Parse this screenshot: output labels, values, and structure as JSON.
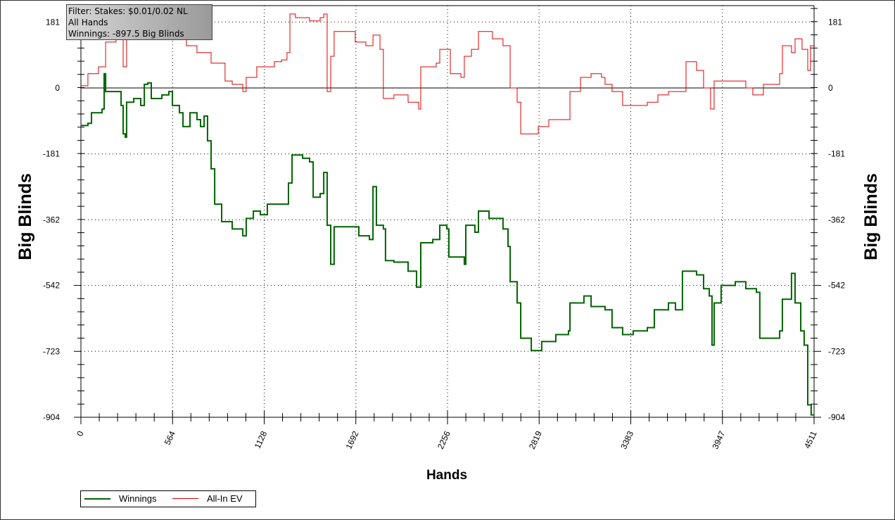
{
  "filter_box": {
    "line1": "Filter: Stakes: $0.01/0.02 NL",
    "line2": "All Hands",
    "line3": "Winnings: -897.5 Big Blinds"
  },
  "chart_data": {
    "type": "line",
    "xlabel": "Hands",
    "ylabel": "Big Blinds",
    "ylabel_right": "Big Blinds",
    "xlim": [
      0,
      4511
    ],
    "ylim": [
      -904,
      226
    ],
    "x_ticks": [
      0,
      564,
      1128,
      1692,
      2256,
      2819,
      3383,
      3947,
      4511
    ],
    "x_tick_labels": [
      "0",
      "564",
      "1128",
      "1692",
      "2256",
      "2819",
      "3383",
      "3947",
      "4511"
    ],
    "y_ticks": [
      181,
      0,
      -181,
      -362,
      -542,
      -723,
      -904
    ],
    "y_tick_labels": [
      "181",
      "0",
      "-181",
      "-362",
      "-542",
      "-723",
      "-904"
    ],
    "grid": true,
    "legend_placement": "bottom-left",
    "series": [
      {
        "name": "Winnings",
        "color": "#006400",
        "points": [
          [
            0,
            -103
          ],
          [
            43,
            -97
          ],
          [
            65,
            -68
          ],
          [
            130,
            -58
          ],
          [
            143,
            39
          ],
          [
            152,
            -10
          ],
          [
            216,
            -10
          ],
          [
            247,
            -48
          ],
          [
            260,
            -126
          ],
          [
            273,
            -135
          ],
          [
            281,
            -39
          ],
          [
            325,
            -29
          ],
          [
            368,
            -48
          ],
          [
            390,
            10
          ],
          [
            411,
            14
          ],
          [
            433,
            -29
          ],
          [
            498,
            -19
          ],
          [
            541,
            -10
          ],
          [
            563,
            -48
          ],
          [
            606,
            -68
          ],
          [
            628,
            -106
          ],
          [
            671,
            -68
          ],
          [
            714,
            -87
          ],
          [
            736,
            -106
          ],
          [
            758,
            -77
          ],
          [
            779,
            -145
          ],
          [
            801,
            -222
          ],
          [
            823,
            -319
          ],
          [
            866,
            -367
          ],
          [
            931,
            -387
          ],
          [
            996,
            -406
          ],
          [
            1017,
            -358
          ],
          [
            1061,
            -338
          ],
          [
            1104,
            -348
          ],
          [
            1147,
            -319
          ],
          [
            1234,
            -319
          ],
          [
            1277,
            -261
          ],
          [
            1299,
            -184
          ],
          [
            1364,
            -193
          ],
          [
            1407,
            -203
          ],
          [
            1429,
            -300
          ],
          [
            1472,
            -290
          ],
          [
            1494,
            -232
          ],
          [
            1515,
            -377
          ],
          [
            1537,
            -484
          ],
          [
            1558,
            -381
          ],
          [
            1667,
            -381
          ],
          [
            1710,
            -406
          ],
          [
            1775,
            -416
          ],
          [
            1797,
            -271
          ],
          [
            1818,
            -377
          ],
          [
            1861,
            -387
          ],
          [
            1874,
            -474
          ],
          [
            1926,
            -478
          ],
          [
            2013,
            -503
          ],
          [
            2065,
            -547
          ],
          [
            2091,
            -425
          ],
          [
            2165,
            -416
          ],
          [
            2208,
            -377
          ],
          [
            2251,
            -387
          ],
          [
            2264,
            -464
          ],
          [
            2359,
            -484
          ],
          [
            2368,
            -377
          ],
          [
            2424,
            -396
          ],
          [
            2446,
            -338
          ],
          [
            2511,
            -358
          ],
          [
            2597,
            -387
          ],
          [
            2628,
            -435
          ],
          [
            2641,
            -532
          ],
          [
            2684,
            -590
          ],
          [
            2706,
            -687
          ],
          [
            2771,
            -721
          ],
          [
            2835,
            -696
          ],
          [
            2922,
            -677
          ],
          [
            3000,
            -667
          ],
          [
            3009,
            -590
          ],
          [
            3095,
            -571
          ],
          [
            3139,
            -600
          ],
          [
            3225,
            -609
          ],
          [
            3268,
            -658
          ],
          [
            3333,
            -677
          ],
          [
            3398,
            -667
          ],
          [
            3485,
            -658
          ],
          [
            3528,
            -609
          ],
          [
            3615,
            -590
          ],
          [
            3658,
            -609
          ],
          [
            3701,
            -503
          ],
          [
            3788,
            -513
          ],
          [
            3831,
            -551
          ],
          [
            3866,
            -571
          ],
          [
            3883,
            -706
          ],
          [
            3896,
            -590
          ],
          [
            3939,
            -542
          ],
          [
            4026,
            -532
          ],
          [
            4091,
            -551
          ],
          [
            4156,
            -561
          ],
          [
            4177,
            -687
          ],
          [
            4264,
            -687
          ],
          [
            4299,
            -667
          ],
          [
            4316,
            -580
          ],
          [
            4372,
            -509
          ],
          [
            4394,
            -590
          ],
          [
            4429,
            -667
          ],
          [
            4450,
            -706
          ],
          [
            4472,
            -870
          ],
          [
            4493,
            -897.5
          ],
          [
            4511,
            -897.5
          ]
        ]
      },
      {
        "name": "All-In EV",
        "color": "#dd0000",
        "points": [
          [
            0,
            6
          ],
          [
            43,
            39
          ],
          [
            108,
            58
          ],
          [
            152,
            126
          ],
          [
            216,
            155
          ],
          [
            260,
            58
          ],
          [
            281,
            164
          ],
          [
            368,
            184
          ],
          [
            455,
            193
          ],
          [
            541,
            203
          ],
          [
            584,
            164
          ],
          [
            606,
            135
          ],
          [
            649,
            116
          ],
          [
            714,
            97
          ],
          [
            801,
            68
          ],
          [
            887,
            19
          ],
          [
            931,
            10
          ],
          [
            996,
            -10
          ],
          [
            1017,
            29
          ],
          [
            1082,
            58
          ],
          [
            1147,
            58
          ],
          [
            1190,
            72
          ],
          [
            1234,
            77
          ],
          [
            1268,
            97
          ],
          [
            1286,
            203
          ],
          [
            1320,
            193
          ],
          [
            1407,
            184
          ],
          [
            1472,
            193
          ],
          [
            1494,
            203
          ],
          [
            1515,
            -10
          ],
          [
            1537,
            87
          ],
          [
            1558,
            155
          ],
          [
            1623,
            155
          ],
          [
            1688,
            126
          ],
          [
            1753,
            116
          ],
          [
            1797,
            145
          ],
          [
            1840,
            106
          ],
          [
            1861,
            -29
          ],
          [
            1926,
            -19
          ],
          [
            2013,
            -39
          ],
          [
            2078,
            -58
          ],
          [
            2091,
            58
          ],
          [
            2186,
            68
          ],
          [
            2208,
            106
          ],
          [
            2251,
            106
          ],
          [
            2273,
            39
          ],
          [
            2338,
            29
          ],
          [
            2359,
            87
          ],
          [
            2403,
            106
          ],
          [
            2446,
            155
          ],
          [
            2532,
            135
          ],
          [
            2597,
            116
          ],
          [
            2641,
            0
          ],
          [
            2684,
            -39
          ],
          [
            2706,
            -126
          ],
          [
            2771,
            -126
          ],
          [
            2814,
            -106
          ],
          [
            2879,
            -87
          ],
          [
            3000,
            -87
          ],
          [
            3009,
            -10
          ],
          [
            3074,
            29
          ],
          [
            3139,
            39
          ],
          [
            3203,
            29
          ],
          [
            3225,
            10
          ],
          [
            3268,
            -10
          ],
          [
            3333,
            -48
          ],
          [
            3398,
            -48
          ],
          [
            3485,
            -39
          ],
          [
            3550,
            -19
          ],
          [
            3615,
            -10
          ],
          [
            3680,
            -10
          ],
          [
            3723,
            72
          ],
          [
            3788,
            48
          ],
          [
            3831,
            0
          ],
          [
            3874,
            -58
          ],
          [
            3896,
            19
          ],
          [
            3961,
            19
          ],
          [
            4026,
            19
          ],
          [
            4091,
            0
          ],
          [
            4134,
            -19
          ],
          [
            4199,
            10
          ],
          [
            4264,
            10
          ],
          [
            4299,
            39
          ],
          [
            4316,
            116
          ],
          [
            4372,
            97
          ],
          [
            4394,
            135
          ],
          [
            4437,
            106
          ],
          [
            4472,
            48
          ],
          [
            4489,
            116
          ],
          [
            4511,
            116
          ]
        ]
      }
    ]
  }
}
